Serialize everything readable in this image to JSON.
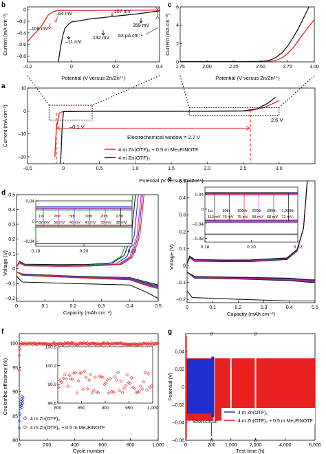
{
  "figure": {
    "panels": [
      "b",
      "c",
      "a",
      "d",
      "e",
      "f",
      "g"
    ]
  },
  "colors": {
    "red": "#e8211e",
    "black": "#111111",
    "blue": "#2030d0",
    "magenta": "#d020d0",
    "green": "#1d9a3a",
    "purple": "#7030a0",
    "dashed_red": "#e8211e"
  },
  "chart_data": [
    {
      "panel": "b",
      "type": "line",
      "xlabel": "Potential (V versus Zn/Zn²⁺)",
      "ylabel": "Current (mA cm⁻²)",
      "xlim": [
        -0.2,
        0.4
      ],
      "ylim": [
        -0.9,
        0.05
      ],
      "xticks": [
        "–0.2",
        "0",
        "0.2",
        "0.4"
      ],
      "yticks": [
        "0",
        "–0.2",
        "–0.4",
        "–0.6",
        "–0.8"
      ],
      "annotations": [
        "–64 mV",
        "157 mV",
        "–108 mV",
        "358 mV",
        "132 mV",
        "–11 mV",
        "63 μA cm⁻²"
      ],
      "series": [
        {
          "name": "4 m Zn(OTF)₂ + 0.5 m Me₃EtNOTF",
          "color": "red",
          "x": [
            -0.2,
            -0.17,
            -0.14,
            -0.12,
            -0.108,
            -0.095,
            -0.08,
            -0.064,
            -0.04,
            0.0,
            0.1,
            0.2,
            0.3,
            0.38,
            0.4
          ],
          "y": [
            -0.55,
            -0.42,
            -0.3,
            -0.18,
            -0.1,
            -0.06,
            -0.03,
            -0.015,
            -0.012,
            -0.011,
            -0.01,
            -0.009,
            -0.008,
            -0.006,
            -0.005
          ]
        },
        {
          "name": "4 m Zn(OTF)₂",
          "color": "black",
          "x": [
            -0.06,
            -0.05,
            -0.04,
            -0.03,
            -0.011,
            0.0,
            0.05,
            0.1,
            0.132,
            0.2,
            0.25,
            0.3,
            0.358,
            0.38,
            0.4
          ],
          "y": [
            -0.9,
            -0.65,
            -0.45,
            -0.32,
            -0.24,
            -0.21,
            -0.18,
            -0.15,
            -0.14,
            -0.11,
            -0.09,
            -0.07,
            -0.04,
            -0.03,
            -0.02
          ]
        }
      ]
    },
    {
      "panel": "c",
      "type": "line",
      "xlabel": "Potential (V versus Zn/Zn²⁺)",
      "ylabel": "Current (mA cm⁻²)",
      "xlim": [
        1.75,
        3.0
      ],
      "ylim": [
        0,
        6
      ],
      "xticks": [
        "1.75",
        "2.00",
        "2.25",
        "2.50",
        "2.75",
        "3.00"
      ],
      "yticks": [
        "0",
        "2",
        "4",
        "6"
      ],
      "series": [
        {
          "name": "4 m Zn(OTF)₂ + 0.5 m Me₃EtNOTF",
          "color": "red",
          "x": [
            1.75,
            2.0,
            2.25,
            2.5,
            2.6,
            2.65,
            2.7,
            2.75,
            2.8,
            2.85,
            2.9,
            2.95,
            3.0
          ],
          "y": [
            0.02,
            0.02,
            0.03,
            0.04,
            0.08,
            0.2,
            0.45,
            0.9,
            1.5,
            2.3,
            3.1,
            3.9,
            4.6
          ]
        },
        {
          "name": "4 m Zn(OTF)₂",
          "color": "black",
          "x": [
            1.75,
            2.0,
            2.25,
            2.5,
            2.55,
            2.6,
            2.65,
            2.7,
            2.75,
            2.8,
            2.85,
            2.9,
            2.95
          ],
          "y": [
            0.02,
            0.02,
            0.03,
            0.05,
            0.1,
            0.25,
            0.55,
            1.0,
            1.7,
            2.6,
            3.6,
            4.8,
            6.0
          ]
        }
      ]
    },
    {
      "panel": "a",
      "type": "line",
      "xlabel": "Potential (V versus Zn/Zn²⁺)",
      "ylabel": "Current (mA cm⁻²)",
      "xlim": [
        -0.5,
        3.5
      ],
      "ylim": [
        -23,
        10
      ],
      "xticks": [
        "–0.5",
        "0",
        "0.5",
        "1.0",
        "1.5",
        "2.0",
        "2.5",
        "3.0"
      ],
      "yticks": [
        "10",
        "0",
        "–10",
        "–20"
      ],
      "annotations": [
        "–0.1 V",
        "2.6 V",
        "Electrochemical window = 2.7 V"
      ],
      "legend": [
        "4 m Zn(OTF)₂ + 0.5 m Me₃EtNOTF",
        "4 m Zn(OTF)₂"
      ],
      "series": [
        {
          "name": "4 m Zn(OTF)₂ + 0.5 m Me₃EtNOTF",
          "color": "red",
          "x": [
            -0.12,
            -0.1,
            -0.06,
            0.0,
            0.5,
            1.0,
            1.5,
            2.0,
            2.5,
            2.6,
            2.8,
            3.0
          ],
          "y": [
            -20,
            -8,
            -1,
            -0.1,
            -0.05,
            -0.05,
            -0.05,
            -0.04,
            0.0,
            0.2,
            1.5,
            4.5
          ]
        },
        {
          "name": "4 m Zn(OTF)₂",
          "color": "black",
          "x": [
            -0.04,
            -0.02,
            0.0,
            0.5,
            1.0,
            1.5,
            2.0,
            2.5,
            2.7,
            2.85,
            2.95
          ],
          "y": [
            -23,
            -8,
            -0.3,
            -0.1,
            -0.1,
            -0.1,
            -0.1,
            0.0,
            1.0,
            3.5,
            6.0
          ]
        }
      ]
    },
    {
      "panel": "d",
      "type": "line",
      "xlabel": "Capacity (mAh cm⁻²)",
      "ylabel": "Voltage (V)",
      "xlim": [
        0,
        0.5
      ],
      "ylim": [
        -0.22,
        0.5
      ],
      "xticks": [
        "0",
        "0.1",
        "0.2",
        "0.3",
        "0.4",
        "0.5"
      ],
      "yticks": [
        "0.5",
        "0.4",
        "0.3",
        "0.2",
        "0.1",
        "0",
        "–0.1",
        "–0.2"
      ],
      "inset": {
        "xlim": [
          0.18,
          0.22
        ],
        "ylim": [
          -0.05,
          0.04
        ],
        "xticks": [
          "0.18",
          "0.20",
          "0.22"
        ],
        "yticks": [
          "0.04",
          "0",
          "–0.04"
        ],
        "labels": [
          [
            "1st",
            "82 mV"
          ],
          [
            "2nd",
            "50 mV"
          ],
          [
            "5th",
            "43 mV"
          ],
          [
            "10th",
            "41 mV"
          ],
          [
            "20th",
            "39 mV"
          ],
          [
            "27th",
            "38 mV"
          ]
        ]
      },
      "series": [
        {
          "name": "1st",
          "color": "black",
          "charge_end": 0.42,
          "plateau": 0.03
        },
        {
          "name": "2nd",
          "color": "green",
          "charge_end": 0.41,
          "plateau": 0.025
        },
        {
          "name": "5th",
          "color": "blue",
          "charge_end": 0.43,
          "plateau": 0.022
        },
        {
          "name": "10th",
          "color": "magenta",
          "charge_end": 0.44,
          "plateau": 0.02
        },
        {
          "name": "20th",
          "color": "purple",
          "charge_end": 0.445,
          "plateau": 0.019
        },
        {
          "name": "27th",
          "color": "red",
          "charge_end": 0.45,
          "plateau": 0.019
        }
      ]
    },
    {
      "panel": "e",
      "type": "line",
      "xlabel": "Capacity (mAh cm⁻²)",
      "ylabel": "Voltage (V)",
      "xlim": [
        0,
        0.5
      ],
      "ylim": [
        -0.22,
        0.5
      ],
      "xticks": [
        "0",
        "0.1",
        "0.2",
        "0.3",
        "0.4",
        "0.5"
      ],
      "yticks": [
        "0.5",
        "0.4",
        "0.3",
        "0.2",
        "0.1",
        "0",
        "–0.1",
        "–0.2"
      ],
      "inset": {
        "xlim": [
          0.18,
          0.22
        ],
        "ylim": [
          -0.09,
          0.06
        ],
        "xticks": [
          "0.18",
          "0.20",
          "0.22"
        ],
        "yticks": [
          "0.04",
          "0",
          "–0.04",
          "–0.08"
        ],
        "labels": [
          [
            "1st",
            "113 mV"
          ],
          [
            "50th",
            "75 mV"
          ],
          [
            "100th",
            "75 mV"
          ],
          [
            "200th",
            "58 mV"
          ],
          [
            "500th",
            "68 mV"
          ],
          [
            "1,000th",
            "71 mV"
          ]
        ]
      },
      "series": [
        {
          "name": "1st",
          "color": "black"
        },
        {
          "name": "50th",
          "color": "blue"
        },
        {
          "name": "100th",
          "color": "red"
        },
        {
          "name": "200th",
          "color": "magenta"
        },
        {
          "name": "500th",
          "color": "purple"
        },
        {
          "name": "1,000th",
          "color": "black"
        }
      ]
    },
    {
      "panel": "f",
      "type": "scatter",
      "xlabel": "Cycle number",
      "ylabel": "Coulombic efficiency (%)",
      "xlim": [
        0,
        1000
      ],
      "ylim": [
        80,
        102
      ],
      "xticks": [
        "0",
        "200",
        "400",
        "600",
        "800",
        "1,000"
      ],
      "yticks": [
        "100",
        "95",
        "90",
        "85",
        "80"
      ],
      "inset": {
        "xlim": [
          800,
          1000
        ],
        "ylim": [
          99.6,
          100.5
        ],
        "xticks": [
          "800",
          "850",
          "900",
          "950",
          "1,000"
        ],
        "yticks": [
          "100.5",
          "100.2",
          "99.9",
          "99.6"
        ]
      },
      "legend": [
        "4 m Zn(OTF)₂",
        "4 m Zn(OTF)₂ + 0.5 m Me₃EtNOTF"
      ],
      "series": [
        {
          "name": "4 m Zn(OTF)₂",
          "color": "blue",
          "x": [
            1,
            3,
            5,
            7,
            9,
            11,
            13,
            15,
            17,
            19,
            21,
            23,
            25,
            27
          ],
          "y": [
            82.5,
            84.0,
            85.5,
            86.5,
            87.0,
            87.5,
            88.0,
            87.2,
            88.5,
            86.8,
            89.0,
            88.2,
            87.6,
            88.8
          ]
        },
        {
          "name": "4 m Zn(OTF)₂ + 0.5 m Me₃EtNOTF",
          "color": "red",
          "first": [
            [
              1,
              94.5
            ],
            [
              2,
              97.5
            ],
            [
              3,
              98.8
            ],
            [
              4,
              99.4
            ]
          ],
          "plateau": 99.9
        }
      ]
    },
    {
      "panel": "g",
      "type": "line",
      "xlabel": "Test time (h)",
      "ylabel": "Potential (V)",
      "xlim": [
        0,
        6000
      ],
      "ylim": [
        -0.06,
        0.06
      ],
      "xticks": [
        "0",
        "200",
        "1,000",
        "2,000",
        "4,000",
        "6,000"
      ],
      "yticks": [
        "0.04",
        "0.02",
        "0",
        "–0.02",
        "–0.04",
        "–0.06"
      ],
      "annotations": [
        "Short circuit"
      ],
      "legend": [
        "4 m Zn(OTF)₂",
        "4 m Zn(OTF)₂ + 0.5 m Me₃EtNOTF"
      ],
      "series": [
        {
          "name": "4 m Zn(OTF)₂",
          "color": "blue",
          "x_end": 200,
          "amplitude": 0.03,
          "short_circuit_at": 200
        },
        {
          "name": "4 m Zn(OTF)₂ + 0.5 m Me₃EtNOTF",
          "color": "red",
          "x_end": 6000,
          "amplitude": 0.038
        }
      ]
    }
  ]
}
